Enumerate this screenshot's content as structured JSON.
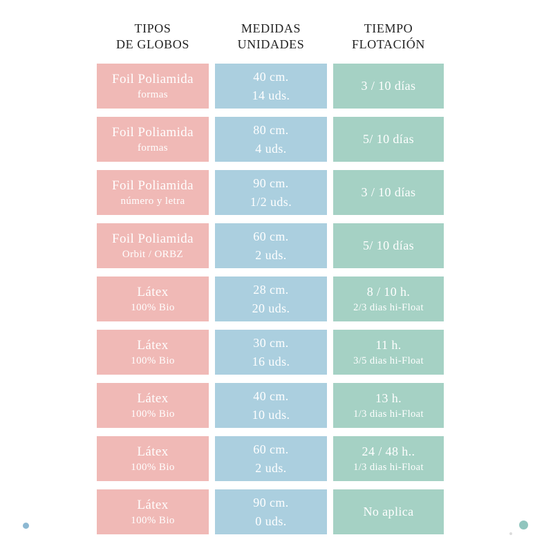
{
  "colors": {
    "background": "#ffffff",
    "tipos_cell_bg": "#f0b9b6",
    "medidas_cell_bg": "#abcfdf",
    "tiempo_cell_bg": "#a5d1c4",
    "cell_text": "#ffffff",
    "header_text": "#232323",
    "dot_blue": "#8cb8d2",
    "dot_teal": "#90c5be"
  },
  "table": {
    "headers": [
      {
        "line1": "TIPOS",
        "line2": "DE GLOBOS"
      },
      {
        "line1": "MEDIDAS",
        "line2": "UNIDADES"
      },
      {
        "line1": "TIEMPO",
        "line2": "FLOTACIÓN"
      }
    ],
    "rows": [
      {
        "tipo": {
          "main": "Foil Poliamida",
          "sub": "formas"
        },
        "medida": {
          "main": "40 cm.",
          "sub": "14 uds."
        },
        "tiempo": {
          "main": "3 / 10 días",
          "sub": ""
        }
      },
      {
        "tipo": {
          "main": "Foil Poliamida",
          "sub": "formas"
        },
        "medida": {
          "main": "80 cm.",
          "sub": "4 uds."
        },
        "tiempo": {
          "main": "5/ 10 días",
          "sub": ""
        }
      },
      {
        "tipo": {
          "main": "Foil Poliamida",
          "sub": "número y letra"
        },
        "medida": {
          "main": "90 cm.",
          "sub": "1/2 uds."
        },
        "tiempo": {
          "main": "3 / 10 días",
          "sub": ""
        }
      },
      {
        "tipo": {
          "main": "Foil Poliamida",
          "sub": "Orbit / ORBZ"
        },
        "medida": {
          "main": "60 cm.",
          "sub": "2 uds."
        },
        "tiempo": {
          "main": "5/ 10 días",
          "sub": ""
        }
      },
      {
        "tipo": {
          "main": "Látex",
          "sub": "100% Bio"
        },
        "medida": {
          "main": "28 cm.",
          "sub": "20 uds."
        },
        "tiempo": {
          "main": "8 / 10 h.",
          "sub": "2/3 dias hi-Float"
        }
      },
      {
        "tipo": {
          "main": "Látex",
          "sub": "100% Bio"
        },
        "medida": {
          "main": "30 cm.",
          "sub": "16 uds."
        },
        "tiempo": {
          "main": "11 h.",
          "sub": "3/5 dias hi-Float"
        }
      },
      {
        "tipo": {
          "main": "Látex",
          "sub": "100% Bio"
        },
        "medida": {
          "main": "40 cm.",
          "sub": "10 uds."
        },
        "tiempo": {
          "main": "13 h.",
          "sub": "1/3 dias hi-Float"
        }
      },
      {
        "tipo": {
          "main": "Látex",
          "sub": "100% Bio"
        },
        "medida": {
          "main": "60 cm.",
          "sub": "2 uds."
        },
        "tiempo": {
          "main": "24 / 48 h..",
          "sub": "1/3 dias hi-Float"
        }
      },
      {
        "tipo": {
          "main": "Látex",
          "sub": "100% Bio"
        },
        "medida": {
          "main": "90 cm.",
          "sub": "0 uds."
        },
        "tiempo": {
          "main": "No aplica",
          "sub": ""
        }
      }
    ]
  },
  "chart_data": {
    "type": "table",
    "title": "",
    "columns": [
      "TIPOS DE GLOBOS",
      "MEDIDAS UNIDADES",
      "TIEMPO FLOTACIÓN"
    ],
    "rows": [
      [
        "Foil Poliamida formas",
        "40 cm. 14 uds.",
        "3 / 10 días"
      ],
      [
        "Foil Poliamida formas",
        "80 cm. 4 uds.",
        "5/ 10 días"
      ],
      [
        "Foil Poliamida número y letra",
        "90 cm. 1/2 uds.",
        "3 / 10 días"
      ],
      [
        "Foil Poliamida Orbit / ORBZ",
        "60 cm. 2 uds.",
        "5/ 10 días"
      ],
      [
        "Látex 100% Bio",
        "28 cm. 20 uds.",
        "8 / 10 h. 2/3 dias hi-Float"
      ],
      [
        "Látex 100% Bio",
        "30 cm. 16 uds.",
        "11 h. 3/5 dias hi-Float"
      ],
      [
        "Látex 100% Bio",
        "40 cm. 10 uds.",
        "13 h. 1/3 dias hi-Float"
      ],
      [
        "Látex 100% Bio",
        "60 cm. 2 uds.",
        "24 / 48 h.. 1/3 dias hi-Float"
      ],
      [
        "Látex 100% Bio",
        "90 cm. 0 uds.",
        "No aplica"
      ]
    ],
    "layout_hints": {
      "grid": false,
      "legend": "none",
      "column_colors": [
        "#f0b9b6",
        "#abcfdf",
        "#a5d1c4"
      ]
    }
  }
}
